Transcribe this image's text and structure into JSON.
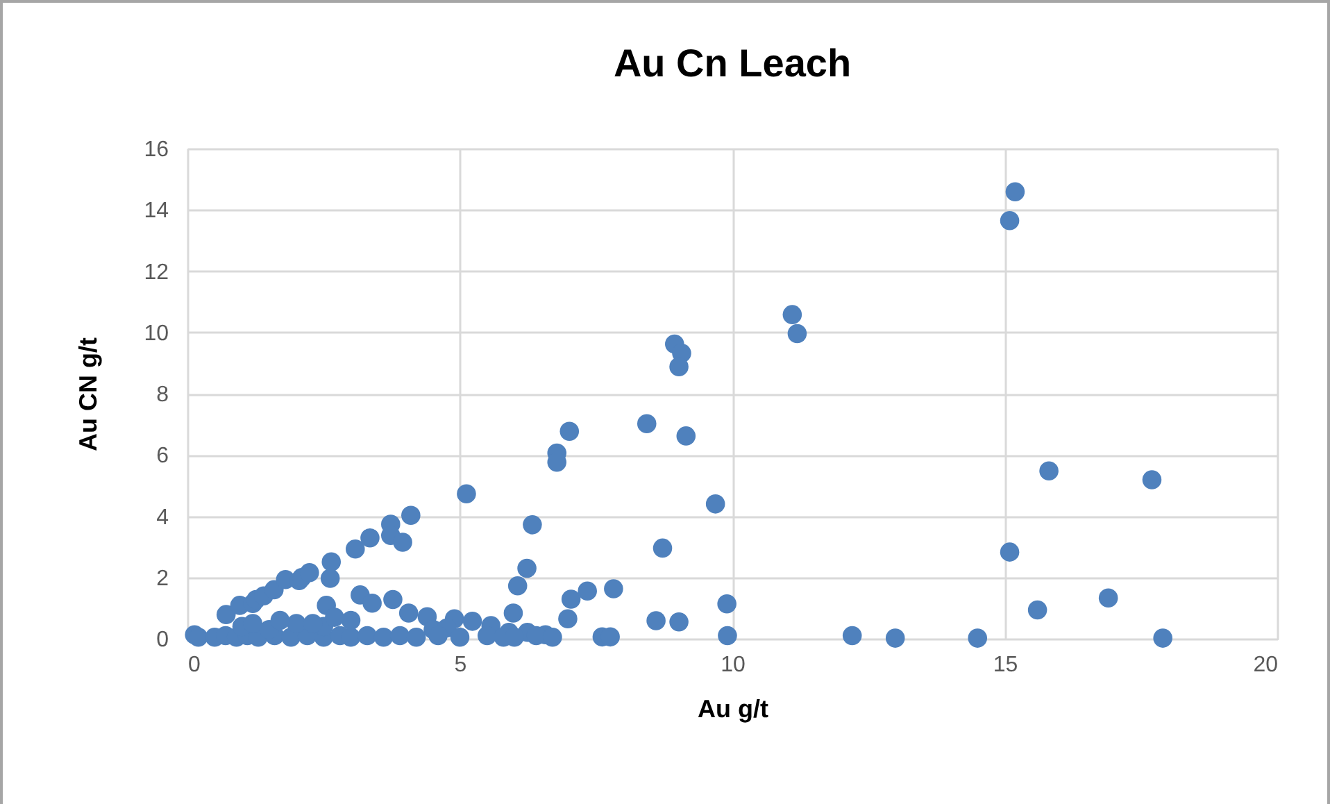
{
  "chart_data": {
    "type": "scatter",
    "title": "Au Cn Leach",
    "xlabel": "Au g/t",
    "ylabel": "Au CN g/t",
    "xlim": [
      0,
      20
    ],
    "xticks": [
      0,
      5,
      10,
      15,
      20
    ],
    "ylim": [
      0,
      16
    ],
    "yticks": [
      0,
      2,
      4,
      6,
      8,
      10,
      12,
      14,
      16
    ],
    "grid": true,
    "marker": "circle",
    "x": [
      0.13,
      0.71,
      0.96,
      1.2,
      1.26,
      1.4,
      1.59,
      1.8,
      2.05,
      2.1,
      2.24,
      2.62,
      2.64,
      3.08,
      3.35,
      3.73,
      3.73,
      3.95,
      4.1,
      5.12,
      6.33,
      6.23,
      6.06,
      5.98,
      7.01,
      6.78,
      6.78,
      8.43,
      9.15,
      9.69,
      8.72,
      9.9,
      9.91,
      12.2,
      7.04,
      6.98,
      7.34,
      7.82,
      8.6,
      9.02,
      7.61,
      7.76,
      15.19,
      15.09,
      11.1,
      11.19,
      8.94,
      9.07,
      9.02,
      15.81,
      17.7,
      15.09,
      15.6,
      16.9,
      17.9,
      12.99,
      14.5,
      3.17,
      3.77,
      2.55,
      3.39,
      4.06,
      4.4,
      4.9,
      5.23,
      5.57,
      5.9,
      6.24,
      6.57,
      4.51,
      4.76,
      0.2,
      0.5,
      0.7,
      0.9,
      1.1,
      1.3,
      1.6,
      1.9,
      2.2,
      2.5,
      2.8,
      3.0,
      3.3,
      3.6,
      3.9,
      4.2,
      4.6,
      5.0,
      5.5,
      5.8,
      6.0,
      6.4,
      6.7,
      1.0,
      1.5,
      2.0,
      2.5,
      3.0,
      1.2,
      1.7,
      2.3,
      2.7
    ],
    "series": [
      {
        "color": "#4f81bd",
        "values": [
          0.13,
          0.79,
          1.09,
          1.15,
          1.28,
          1.4,
          1.6,
          1.93,
          1.9,
          2.0,
          2.16,
          1.97,
          2.51,
          2.93,
          3.29,
          3.74,
          3.37,
          3.15,
          4.03,
          4.73,
          3.72,
          2.3,
          1.73,
          0.84,
          6.77,
          6.06,
          5.76,
          7.02,
          6.62,
          4.4,
          2.96,
          1.14,
          0.1,
          0.1,
          1.29,
          0.65,
          1.56,
          1.63,
          0.59,
          0.55,
          0.06,
          0.06,
          14.59,
          13.65,
          10.58,
          9.96,
          9.62,
          9.32,
          8.88,
          5.48,
          5.19,
          2.83,
          0.94,
          1.33,
          0.02,
          0.02,
          0.02,
          1.43,
          1.28,
          1.09,
          1.16,
          0.84,
          0.72,
          0.65,
          0.57,
          0.43,
          0.21,
          0.21,
          0.13,
          0.3,
          0.35,
          0.05,
          0.05,
          0.1,
          0.05,
          0.1,
          0.05,
          0.1,
          0.05,
          0.1,
          0.05,
          0.1,
          0.05,
          0.1,
          0.05,
          0.1,
          0.05,
          0.1,
          0.05,
          0.1,
          0.05,
          0.05,
          0.1,
          0.05,
          0.4,
          0.3,
          0.5,
          0.4,
          0.6,
          0.5,
          0.6,
          0.5,
          0.7
        ]
      }
    ]
  }
}
